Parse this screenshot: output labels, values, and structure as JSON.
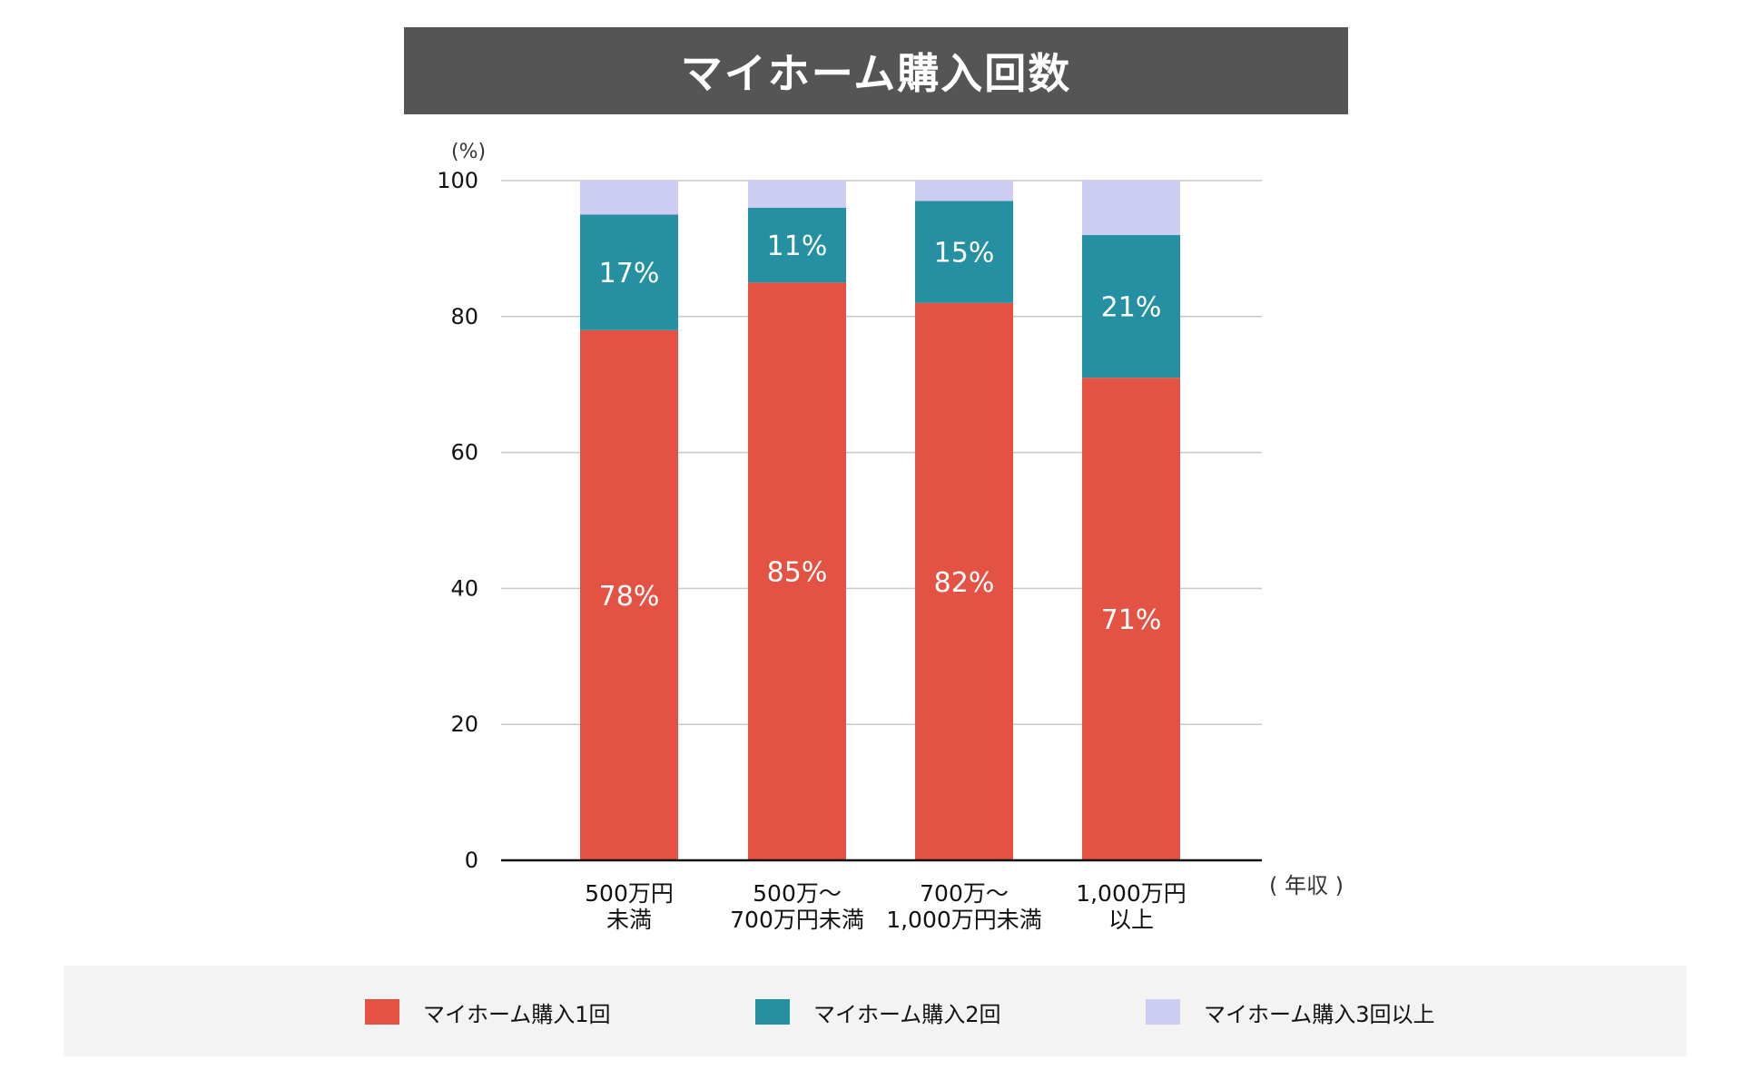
{
  "title": "マイホーム購入回数",
  "chart_data": {
    "type": "bar",
    "stacked": true,
    "title": "マイホーム購入回数",
    "ylabel": "(%)",
    "xlabel": "( 年収 )",
    "ylim": [
      0,
      100
    ],
    "yticks": [
      0,
      20,
      40,
      60,
      80,
      100
    ],
    "grid": true,
    "legend_position": "bottom",
    "categories": [
      [
        "500万円",
        "未満"
      ],
      [
        "500万～",
        "700万円未満"
      ],
      [
        "700万～",
        "1,000万円未満"
      ],
      [
        "1,000万円",
        "以上"
      ]
    ],
    "series": [
      {
        "name": "マイホーム購入1回",
        "color": "#e35243",
        "values": [
          78,
          85,
          82,
          71
        ],
        "labels": [
          "78%",
          "85%",
          "82%",
          "71%"
        ]
      },
      {
        "name": "マイホーム購入2回",
        "color": "#2590a2",
        "values": [
          17,
          11,
          15,
          21
        ],
        "labels": [
          "17%",
          "11%",
          "15%",
          "21%"
        ]
      },
      {
        "name": "マイホーム購入3回以上",
        "color": "#cdcdf2",
        "values": [
          5,
          4,
          3,
          8
        ],
        "labels": [
          "",
          "",
          "",
          ""
        ]
      }
    ]
  }
}
